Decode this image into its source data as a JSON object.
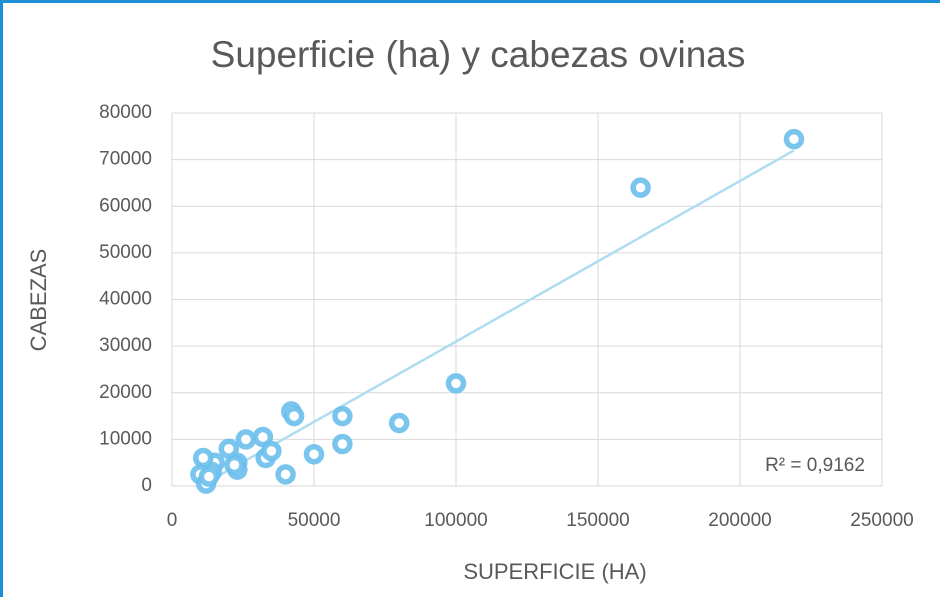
{
  "chart_data": {
    "type": "scatter",
    "title": "Superficie (ha) y cabezas ovinas",
    "x_label": "SUPERFICIE (HA)",
    "y_label": "CABEZAS",
    "annotation": "R² = 0,9162",
    "series": [
      {
        "color": "#6cbfec",
        "x": [
          219000,
          165000,
          100000,
          80000,
          60000,
          60000,
          50000,
          42000,
          43000,
          40000,
          32000,
          33000,
          35000,
          26000,
          23000,
          23000,
          22000,
          20000,
          15000,
          14000,
          11000,
          10000,
          12000,
          13000
        ],
        "values": [
          74400,
          64000,
          22000,
          13500,
          15000,
          9000,
          6800,
          16000,
          15000,
          2500,
          10500,
          6000,
          7500,
          10000,
          5000,
          3500,
          4500,
          8000,
          5000,
          3000,
          6000,
          2500,
          500,
          2000
        ]
      }
    ],
    "trendline_color": "#b0dcf2",
    "xlim": [
      0,
      250000
    ],
    "xticks": [
      0,
      50000,
      100000,
      150000,
      200000,
      250000
    ],
    "ylim": [
      0,
      80000
    ],
    "yticks": [
      0,
      10000,
      20000,
      30000,
      40000,
      50000,
      60000,
      70000,
      80000
    ],
    "grid": true
  }
}
